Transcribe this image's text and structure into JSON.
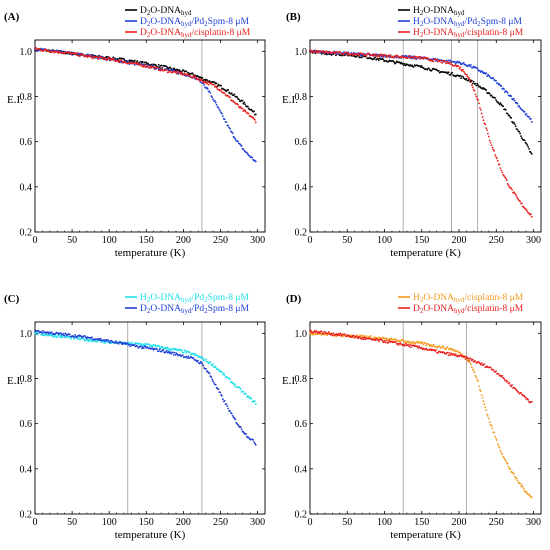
{
  "figure": {
    "panels": [
      {
        "label": "(A)",
        "ylabel": "E.I.",
        "xlabel": "temperature (K)"
      },
      {
        "label": "(B)",
        "ylabel": "E.I.",
        "xlabel": "temperature (K)"
      },
      {
        "label": "(C)",
        "ylabel": "E.I.",
        "xlabel": "temperature (K)"
      },
      {
        "label": "(D)",
        "ylabel": "E.I.",
        "xlabel": "temperature (K)"
      }
    ]
  },
  "chart_data": [
    {
      "type": "scatter",
      "title": "(A)",
      "xlabel": "temperature (K)",
      "ylabel": "E.I.",
      "xlim": [
        0,
        310
      ],
      "ylim": [
        0.2,
        1.05
      ],
      "xticks": [
        0,
        50,
        100,
        150,
        200,
        250,
        300
      ],
      "yticks": [
        0.2,
        0.4,
        0.6,
        0.8,
        1.0
      ],
      "legend_position": "top-right",
      "vlines": [
        225
      ],
      "series": [
        {
          "name_parts": [
            "D",
            "2",
            "O-DNA",
            "hyd",
            ""
          ],
          "name_sub": [
            false,
            true,
            false,
            true,
            false
          ],
          "color": "#000000",
          "x": [
            0,
            25,
            50,
            75,
            100,
            125,
            150,
            175,
            200,
            215,
            225,
            240,
            250,
            260,
            270,
            280,
            290,
            298
          ],
          "y": [
            1.01,
            1.0,
            0.99,
            0.98,
            0.97,
            0.96,
            0.945,
            0.93,
            0.91,
            0.895,
            0.88,
            0.86,
            0.845,
            0.825,
            0.8,
            0.775,
            0.745,
            0.72
          ]
        },
        {
          "name_parts": [
            "D",
            "2",
            "O-DNA",
            "hyd",
            "/Pd",
            "2",
            "Spm-8 μM"
          ],
          "name_sub": [
            false,
            true,
            false,
            true,
            false,
            true,
            false
          ],
          "color": "#1f3fd6",
          "x": [
            0,
            25,
            50,
            75,
            100,
            125,
            150,
            175,
            200,
            215,
            225,
            235,
            245,
            255,
            265,
            275,
            285,
            298
          ],
          "y": [
            1.01,
            1.0,
            0.99,
            0.98,
            0.965,
            0.95,
            0.935,
            0.92,
            0.9,
            0.885,
            0.865,
            0.82,
            0.76,
            0.7,
            0.64,
            0.59,
            0.55,
            0.51
          ]
        },
        {
          "name_parts": [
            "D",
            "2",
            "O-DNA",
            "hyd",
            "/cisplatin-8 μM"
          ],
          "name_sub": [
            false,
            true,
            false,
            true,
            false
          ],
          "color": "#e8201e",
          "x": [
            0,
            25,
            50,
            75,
            100,
            125,
            150,
            175,
            200,
            215,
            225,
            240,
            250,
            260,
            270,
            280,
            290,
            298
          ],
          "y": [
            1.01,
            1.0,
            0.99,
            0.975,
            0.965,
            0.95,
            0.935,
            0.915,
            0.9,
            0.885,
            0.87,
            0.85,
            0.83,
            0.8,
            0.77,
            0.74,
            0.715,
            0.69
          ]
        }
      ]
    },
    {
      "type": "scatter",
      "title": "(B)",
      "xlabel": "temperature (K)",
      "ylabel": "E.I.",
      "xlim": [
        0,
        310
      ],
      "ylim": [
        0.2,
        1.05
      ],
      "xticks": [
        0,
        50,
        100,
        150,
        200,
        250,
        300
      ],
      "yticks": [
        0.2,
        0.4,
        0.6,
        0.8,
        1.0
      ],
      "legend_position": "top-right",
      "vlines": [
        125,
        190,
        225
      ],
      "series": [
        {
          "name_parts": [
            "H",
            "2",
            "O-DNA",
            "hyd",
            ""
          ],
          "name_sub": [
            false,
            true,
            false,
            true,
            false
          ],
          "color": "#000000",
          "x": [
            0,
            25,
            50,
            75,
            100,
            125,
            150,
            175,
            190,
            200,
            215,
            225,
            240,
            250,
            260,
            270,
            280,
            290,
            298
          ],
          "y": [
            1.0,
            0.99,
            0.985,
            0.975,
            0.96,
            0.945,
            0.93,
            0.91,
            0.9,
            0.89,
            0.87,
            0.85,
            0.815,
            0.785,
            0.75,
            0.7,
            0.645,
            0.59,
            0.54
          ]
        },
        {
          "name_parts": [
            "H",
            "2",
            "O-DNA",
            "hyd",
            "/Pd",
            "2",
            "Spm-8 μM"
          ],
          "name_sub": [
            false,
            true,
            false,
            true,
            false,
            true,
            false
          ],
          "color": "#1f3fd6",
          "x": [
            0,
            25,
            50,
            75,
            100,
            125,
            150,
            175,
            200,
            215,
            225,
            240,
            250,
            260,
            270,
            280,
            290,
            298
          ],
          "y": [
            1.0,
            0.995,
            0.99,
            0.985,
            0.98,
            0.975,
            0.97,
            0.96,
            0.95,
            0.935,
            0.92,
            0.89,
            0.865,
            0.83,
            0.8,
            0.76,
            0.72,
            0.69
          ]
        },
        {
          "name_parts": [
            "H",
            "2",
            "O-DNA",
            "hyd",
            "/cisplatin-8 μM"
          ],
          "name_sub": [
            false,
            true,
            false,
            true,
            false
          ],
          "color": "#e8201e",
          "x": [
            0,
            25,
            50,
            75,
            100,
            125,
            150,
            175,
            190,
            200,
            210,
            215,
            220,
            225,
            230,
            240,
            250,
            260,
            270,
            280,
            290,
            298
          ],
          "y": [
            1.0,
            0.995,
            0.99,
            0.985,
            0.98,
            0.975,
            0.97,
            0.955,
            0.945,
            0.93,
            0.9,
            0.87,
            0.83,
            0.79,
            0.73,
            0.62,
            0.53,
            0.45,
            0.39,
            0.34,
            0.3,
            0.27
          ]
        }
      ]
    },
    {
      "type": "scatter",
      "title": "(C)",
      "xlabel": "temperature (K)",
      "ylabel": "E.I.",
      "xlim": [
        0,
        310
      ],
      "ylim": [
        0.2,
        1.05
      ],
      "xticks": [
        0,
        50,
        100,
        150,
        200,
        250,
        300
      ],
      "yticks": [
        0.2,
        0.4,
        0.6,
        0.8,
        1.0
      ],
      "legend_position": "top-right",
      "vlines": [
        125,
        225
      ],
      "series": [
        {
          "name_parts": [
            "H",
            "2",
            "O-DNA",
            "hyd",
            "/Pd",
            "2",
            "Spm-8 μM"
          ],
          "name_sub": [
            false,
            true,
            false,
            true,
            false,
            true,
            false
          ],
          "color": "#1ee0e8",
          "x": [
            0,
            25,
            50,
            75,
            100,
            125,
            150,
            175,
            200,
            215,
            225,
            240,
            250,
            260,
            270,
            280,
            290,
            298
          ],
          "y": [
            1.0,
            0.99,
            0.98,
            0.97,
            0.96,
            0.955,
            0.95,
            0.935,
            0.92,
            0.905,
            0.89,
            0.86,
            0.83,
            0.8,
            0.77,
            0.74,
            0.71,
            0.69
          ]
        },
        {
          "name_parts": [
            "D",
            "2",
            "O-DNA",
            "hyd",
            "/Pd",
            "2",
            "Spm-8 μM"
          ],
          "name_sub": [
            false,
            true,
            false,
            true,
            false,
            true,
            false
          ],
          "color": "#1f3fd6",
          "x": [
            0,
            25,
            50,
            75,
            100,
            125,
            150,
            175,
            200,
            215,
            225,
            235,
            245,
            255,
            265,
            275,
            285,
            298
          ],
          "y": [
            1.01,
            1.0,
            0.99,
            0.98,
            0.965,
            0.95,
            0.935,
            0.92,
            0.9,
            0.885,
            0.865,
            0.82,
            0.76,
            0.7,
            0.64,
            0.59,
            0.55,
            0.51
          ]
        }
      ]
    },
    {
      "type": "scatter",
      "title": "(D)",
      "xlabel": "temperature (K)",
      "ylabel": "E.I.",
      "xlim": [
        0,
        310
      ],
      "ylim": [
        0.2,
        1.05
      ],
      "xticks": [
        0,
        50,
        100,
        150,
        200,
        250,
        300
      ],
      "yticks": [
        0.2,
        0.4,
        0.6,
        0.8,
        1.0
      ],
      "legend_position": "top-right",
      "vlines": [
        125,
        210
      ],
      "series": [
        {
          "name_parts": [
            "H",
            "2",
            "O-DNA",
            "hyd",
            "/cisplatin-8 μM"
          ],
          "name_sub": [
            false,
            true,
            false,
            true,
            false
          ],
          "color": "#f39a1e",
          "x": [
            0,
            25,
            50,
            75,
            100,
            125,
            150,
            175,
            190,
            200,
            210,
            215,
            220,
            225,
            230,
            240,
            250,
            260,
            270,
            280,
            290,
            298
          ],
          "y": [
            1.0,
            0.995,
            0.99,
            0.985,
            0.975,
            0.965,
            0.955,
            0.94,
            0.93,
            0.915,
            0.89,
            0.87,
            0.83,
            0.79,
            0.73,
            0.62,
            0.53,
            0.45,
            0.39,
            0.34,
            0.3,
            0.27
          ]
        },
        {
          "name_parts": [
            "D",
            "2",
            "O-DNA",
            "hyd",
            "/cisplatin-8 μM"
          ],
          "name_sub": [
            false,
            true,
            false,
            true,
            false
          ],
          "color": "#e8201e",
          "x": [
            0,
            25,
            50,
            75,
            100,
            125,
            150,
            175,
            200,
            215,
            225,
            240,
            250,
            260,
            270,
            280,
            290,
            298
          ],
          "y": [
            1.01,
            1.0,
            0.99,
            0.975,
            0.965,
            0.95,
            0.935,
            0.915,
            0.9,
            0.885,
            0.87,
            0.85,
            0.83,
            0.8,
            0.77,
            0.74,
            0.715,
            0.69
          ]
        }
      ]
    }
  ]
}
